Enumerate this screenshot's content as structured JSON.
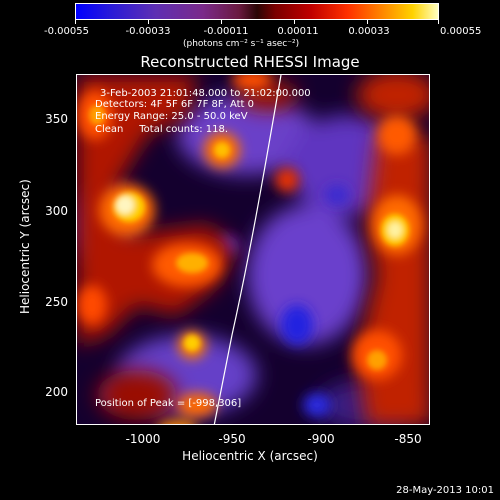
{
  "colorbar": {
    "tick_labels": [
      "-0.00055",
      "-0.00033",
      "-0.00011",
      "0.00011",
      "0.00033",
      "0.00055"
    ],
    "units": "(photons cm⁻² s⁻¹ asec⁻²)"
  },
  "title": "Reconstructed RHESSI Image",
  "info": {
    "time_range": "3-Feb-2003 21:01:48.000 to 21:02:00.000",
    "detectors": "Detectors: 4F 5F 6F 7F 8F, Att 0",
    "energy_range": "Energy Range: 25.0 - 50.0 keV",
    "clean": "Clean     Total counts: 118.",
    "peak": "Position of Peak = [-998,306]"
  },
  "axes": {
    "xlabel": "Heliocentric X (arcsec)",
    "ylabel": "Heliocentric Y (arcsec)",
    "xticks": [
      "-1000",
      "-950",
      "-900",
      "-850"
    ],
    "yticks": [
      "350",
      "300",
      "250",
      "200"
    ]
  },
  "footer": {
    "date": "28-May-2013 10:01"
  },
  "colors": {
    "background": "#000000",
    "text": "#ffffff",
    "limb_line": "#ffffff"
  }
}
